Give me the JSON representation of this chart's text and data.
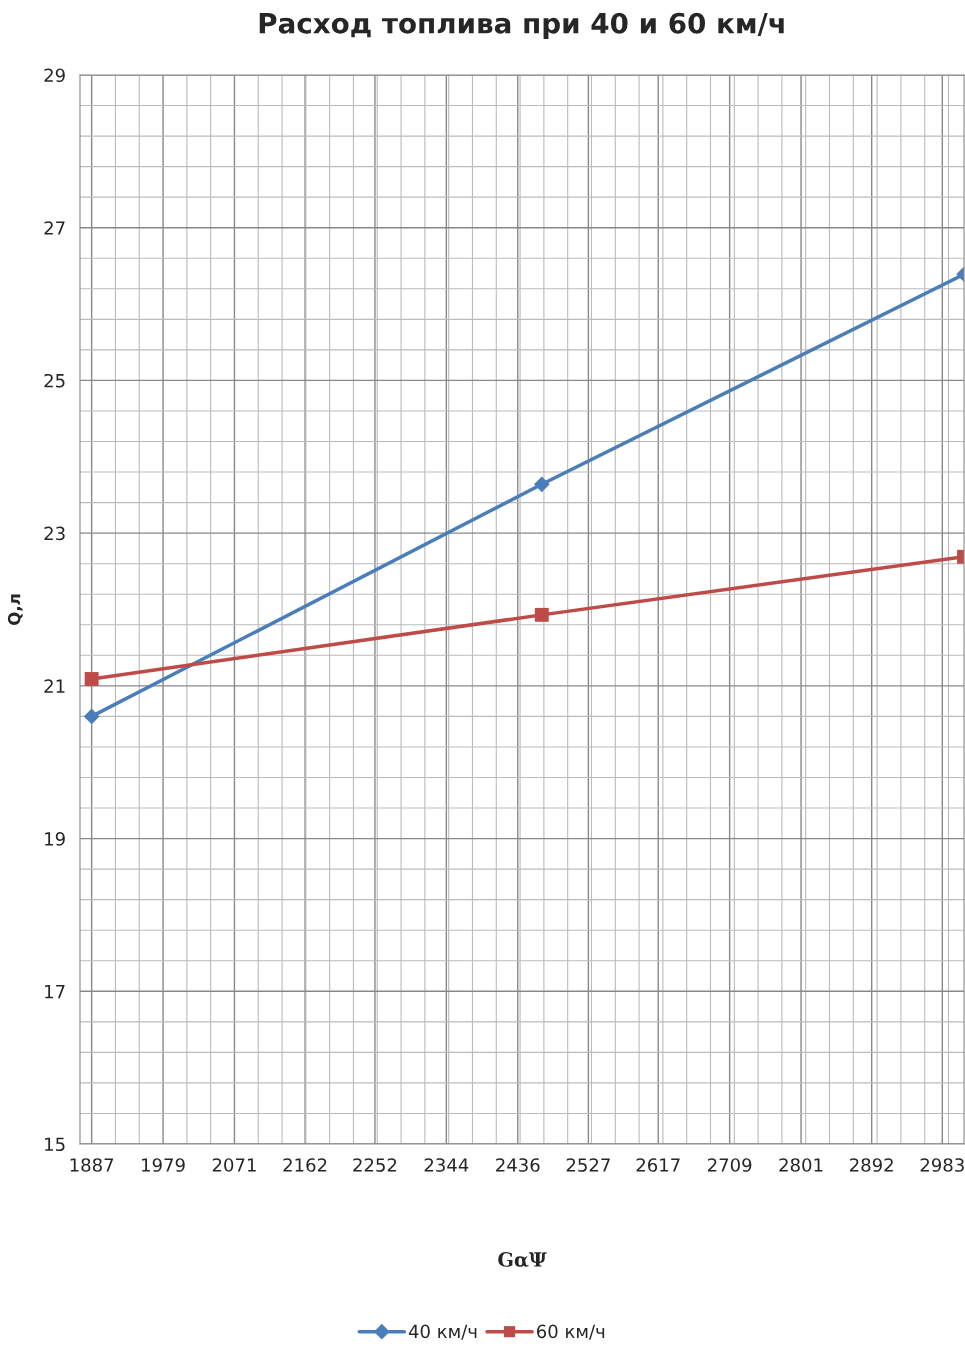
{
  "chart_data": {
    "type": "line",
    "title": "Расход топлива при 40 и 60 км/ч",
    "xlabel": "GαΨ",
    "ylabel": "Q,л",
    "x": [
      1887,
      2467,
      3011
    ],
    "series": [
      {
        "name": "40 км/ч",
        "color": "#4a7ebb",
        "values": [
          20.6,
          23.64,
          26.39
        ],
        "marker": "diamond"
      },
      {
        "name": "60 км/ч",
        "color": "#be4b48",
        "values": [
          21.09,
          21.93,
          22.69
        ],
        "marker": "square"
      }
    ],
    "xlim": [
      1872,
      3011
    ],
    "xticks": [
      1887,
      1979,
      2071,
      2162,
      2252,
      2344,
      2436,
      2527,
      2617,
      2709,
      2801,
      2892,
      2983
    ],
    "ylim": [
      15,
      29
    ],
    "yticks": [
      15,
      17,
      19,
      21,
      23,
      25,
      27,
      29
    ],
    "grid": true,
    "legend": "bottom"
  }
}
